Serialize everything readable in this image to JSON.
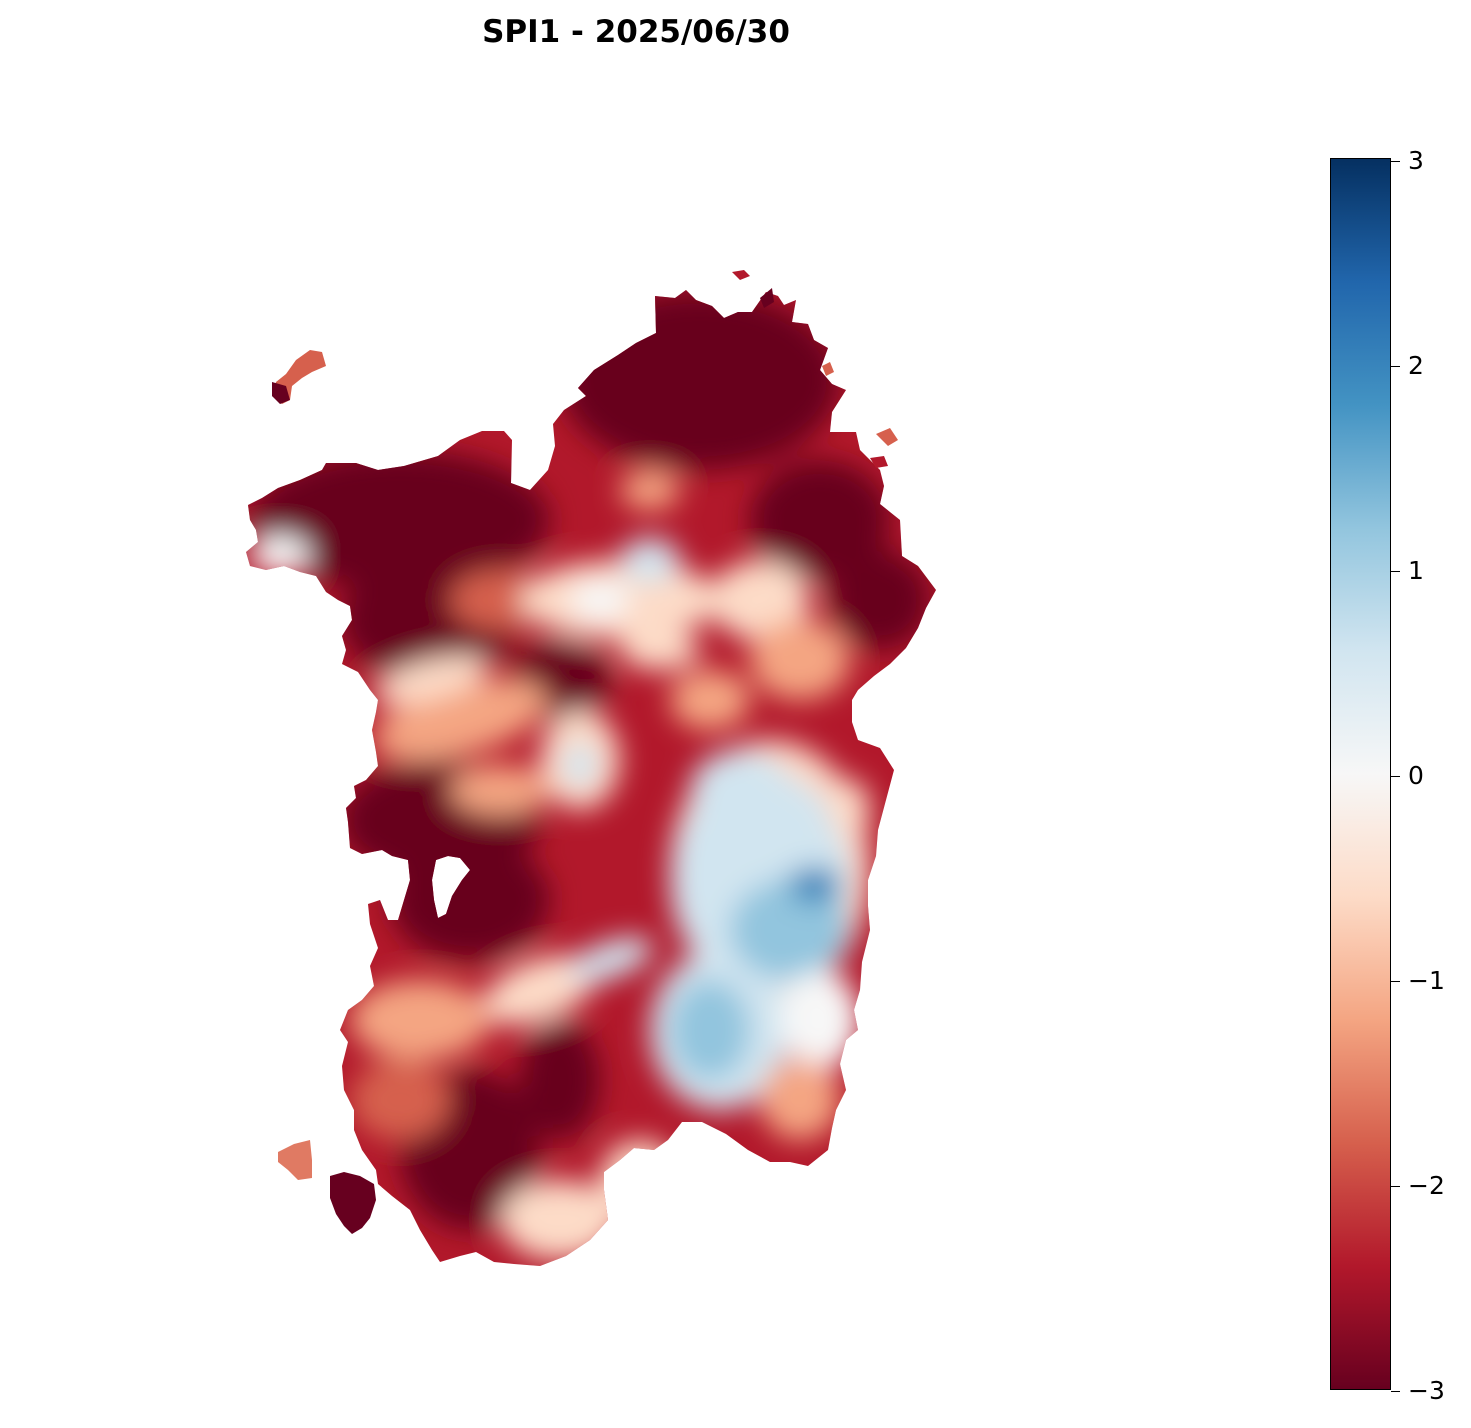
{
  "title": "SPI1 - 2025/06/30",
  "colorbar": {
    "min": -3,
    "max": 3,
    "colormap": "RdBu",
    "stops": [
      "#67001f",
      "#b2182b",
      "#d6604d",
      "#f4a582",
      "#fddbc7",
      "#f7f7f7",
      "#d1e5f0",
      "#92c5de",
      "#4393c3",
      "#2166ac",
      "#053061"
    ],
    "ticks": [
      {
        "value": 3,
        "label": "3"
      },
      {
        "value": 2,
        "label": "2"
      },
      {
        "value": 1,
        "label": "1"
      },
      {
        "value": 0,
        "label": "0"
      },
      {
        "value": -1,
        "label": "−1"
      },
      {
        "value": -2,
        "label": "−2"
      },
      {
        "value": -3,
        "label": "−3"
      }
    ]
  },
  "map": {
    "region": "Sardinia",
    "colors": {
      "very_dry": "#67001f",
      "dry": "#b2182b",
      "moderately_dry": "#d6604d",
      "slightly_dry": "#f4a582",
      "near_normal_dry": "#fddbc7",
      "normal": "#f7f7f7",
      "slightly_wet": "#d1e5f0",
      "wet": "#92c5de",
      "very_wet": "#2166ac"
    }
  }
}
